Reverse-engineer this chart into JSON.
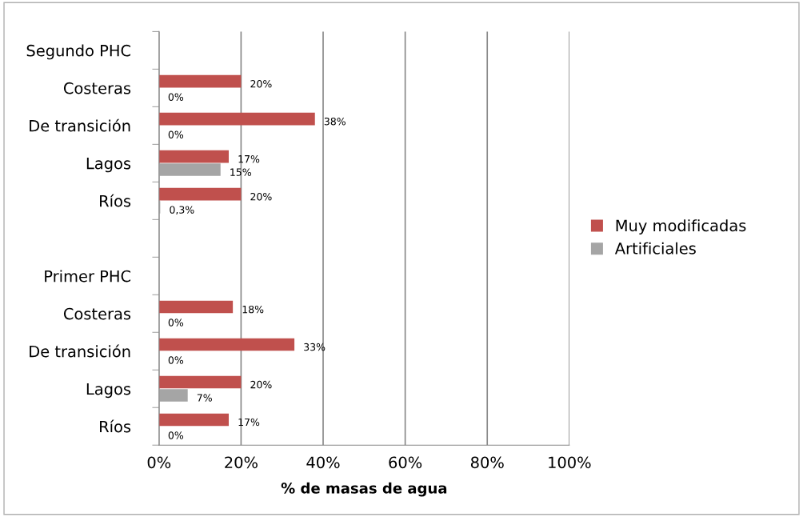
{
  "chart_data": {
    "type": "bar",
    "orientation": "horizontal",
    "xlabel": "% de masas de agua",
    "categories": [
      "Segundo PHC",
      "Costeras",
      "De transición",
      "Lagos",
      "Ríos",
      null,
      "Primer PHC",
      "Costeras",
      "De transición",
      "Lagos",
      "Ríos"
    ],
    "series": [
      {
        "name": "Muy modificadas",
        "color": "#c0504d",
        "values": [
          null,
          20,
          38,
          17,
          20,
          null,
          null,
          18,
          33,
          20,
          17
        ],
        "value_labels": [
          null,
          "20%",
          "38%",
          "17%",
          "20%",
          null,
          null,
          "18%",
          "33%",
          "20%",
          "17%"
        ]
      },
      {
        "name": "Artificiales",
        "color": "#a5a5a5",
        "values": [
          null,
          0,
          0,
          15,
          0.3,
          null,
          null,
          0,
          0,
          7,
          0
        ],
        "value_labels": [
          null,
          "0%",
          "0%",
          "15%",
          "0,3%",
          null,
          null,
          "0%",
          "0%",
          "7%",
          "0%"
        ]
      }
    ],
    "xlim": [
      0,
      100
    ],
    "xticks": [
      {
        "value": 0,
        "label": "0%"
      },
      {
        "value": 20,
        "label": "20%"
      },
      {
        "value": 40,
        "label": "40%"
      },
      {
        "value": 60,
        "label": "60%"
      },
      {
        "value": 80,
        "label": "80%"
      },
      {
        "value": 100,
        "label": "100%"
      }
    ],
    "grid": "x",
    "legend": "right"
  }
}
